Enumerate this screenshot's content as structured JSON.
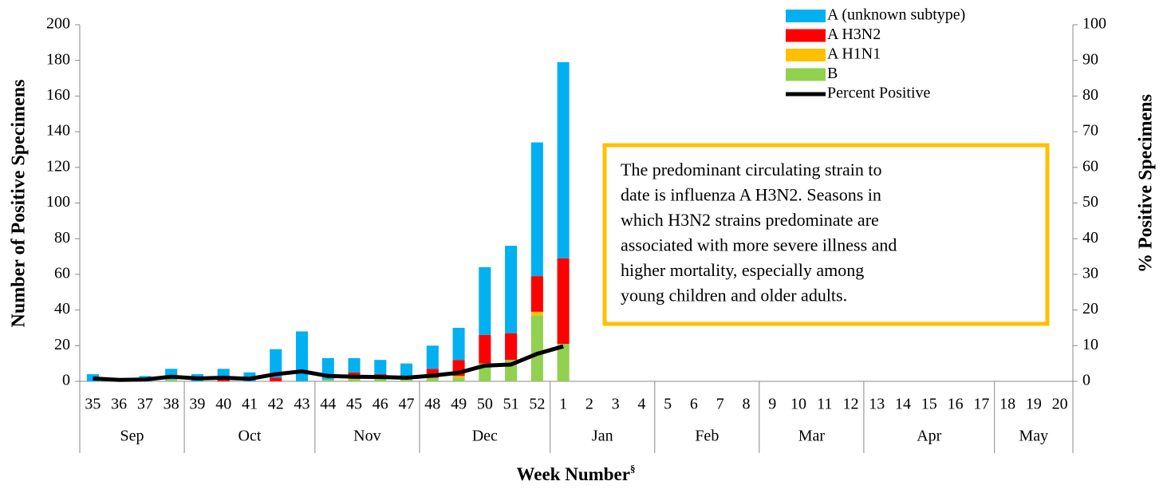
{
  "chart_data": {
    "type": "bar-line",
    "y_label": "Number of Positive Specimens",
    "y2_label": "% Positive Specimens",
    "x_label": "Week Number",
    "x_label_mark": "§",
    "categories": [
      "35",
      "36",
      "37",
      "38",
      "39",
      "40",
      "41",
      "42",
      "43",
      "44",
      "45",
      "46",
      "47",
      "48",
      "49",
      "50",
      "51",
      "52",
      "1",
      "2",
      "3",
      "4",
      "5",
      "6",
      "7",
      "8",
      "9",
      "10",
      "11",
      "12",
      "13",
      "14",
      "15",
      "16",
      "17",
      "18",
      "19",
      "20"
    ],
    "months": [
      "Sep",
      "Sep",
      "Sep",
      "Sep",
      "Oct",
      "Oct",
      "Oct",
      "Oct",
      "Oct",
      "Nov",
      "Nov",
      "Nov",
      "Nov",
      "Dec",
      "Dec",
      "Dec",
      "Dec",
      "Dec",
      "Jan",
      "Jan",
      "Jan",
      "Jan",
      "Feb",
      "Feb",
      "Feb",
      "Feb",
      "Mar",
      "Mar",
      "Mar",
      "Mar",
      "Apr",
      "Apr",
      "Apr",
      "Apr",
      "Apr",
      "May",
      "May",
      "May"
    ],
    "series": [
      {
        "name": "A (unknown subtype)",
        "color": "#00b0f0",
        "values": [
          4,
          0,
          3,
          6,
          4,
          4,
          5,
          16,
          28,
          12,
          8,
          8,
          9,
          13,
          18,
          38,
          49,
          75,
          110,
          null,
          null,
          null,
          null,
          null,
          null,
          null,
          null,
          null,
          null,
          null,
          null,
          null,
          null,
          null,
          null,
          null,
          null,
          null
        ]
      },
      {
        "name": "A H3N2",
        "color": "#ff0000",
        "values": [
          0,
          0,
          0,
          0,
          0,
          3,
          0,
          2,
          0,
          0,
          3,
          2,
          0,
          5,
          9,
          16,
          15,
          20,
          48,
          null,
          null,
          null,
          null,
          null,
          null,
          null,
          null,
          null,
          null,
          null,
          null,
          null,
          null,
          null,
          null,
          null,
          null,
          null
        ]
      },
      {
        "name": "A H1N1",
        "color": "#ffc000",
        "values": [
          0,
          0,
          0,
          0,
          0,
          0,
          0,
          0,
          0,
          0,
          0,
          0,
          0,
          0,
          1,
          0,
          0,
          2,
          0,
          null,
          null,
          null,
          null,
          null,
          null,
          null,
          null,
          null,
          null,
          null,
          null,
          null,
          null,
          null,
          null,
          null,
          null,
          null
        ]
      },
      {
        "name": "B",
        "color": "#92d050",
        "values": [
          0,
          0,
          0,
          1,
          0,
          0,
          0,
          0,
          0,
          1,
          2,
          2,
          1,
          2,
          2,
          10,
          12,
          37,
          21,
          null,
          null,
          null,
          null,
          null,
          null,
          null,
          null,
          null,
          null,
          null,
          null,
          null,
          null,
          null,
          null,
          null,
          null,
          null
        ]
      },
      {
        "name": "Percent Positive",
        "color": "#000000",
        "axis": "y2",
        "type": "line",
        "values": [
          0.8,
          0.4,
          0.5,
          1.3,
          0.8,
          1.0,
          0.7,
          2.0,
          2.8,
          1.5,
          1.3,
          1.2,
          1.0,
          1.6,
          2.4,
          4.4,
          4.7,
          7.7,
          9.8,
          null,
          null,
          null,
          null,
          null,
          null,
          null,
          null,
          null,
          null,
          null,
          null,
          null,
          null,
          null,
          null,
          null,
          null,
          null
        ]
      }
    ],
    "ylim": [
      0,
      200
    ],
    "yticks": [
      0,
      20,
      40,
      60,
      80,
      100,
      120,
      140,
      160,
      180,
      200
    ],
    "y2lim": [
      0,
      100
    ],
    "y2ticks": [
      0,
      10,
      20,
      30,
      40,
      50,
      60,
      70,
      80,
      90,
      100
    ],
    "legend": "top-right",
    "annotation": {
      "border_color": "#ffc000",
      "lines": [
        "The predominant circulating strain to",
        "date is influenza A H3N2. Seasons in",
        "which H3N2 strains predominate are",
        "associated with more severe illness and",
        "higher mortality, especially among",
        "young children and older adults."
      ]
    }
  }
}
